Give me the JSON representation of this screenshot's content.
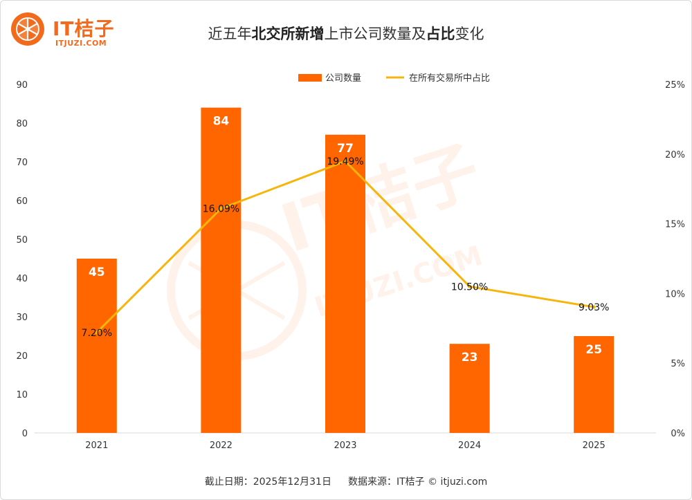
{
  "logo": {
    "brand": "IT桔子",
    "domain": "ITJUZI.COM"
  },
  "title": {
    "part1": "近五年",
    "part2": "北交所新增",
    "part3": "上市公司数量及",
    "part4": "占比",
    "part5": "变化"
  },
  "footer": {
    "date": "截止日期：2025年12月31日",
    "source": "数据来源：IT桔子 © itjuzi.com"
  },
  "watermark": {
    "brand": "IT桔子",
    "domain": "ITJUZI.COM"
  },
  "colors": {
    "bar": "#ff6600",
    "line": "#f5b50a",
    "accent": "#f26a1b",
    "grid": "#d9d9d9",
    "axis_text": "#333333"
  },
  "chart_data": {
    "type": "bar",
    "categories": [
      "2021",
      "2022",
      "2023",
      "2024",
      "2025"
    ],
    "series": [
      {
        "name": "公司数量",
        "type": "bar",
        "axis": "left",
        "values": [
          45,
          84,
          77,
          23,
          25
        ],
        "labels": [
          "45",
          "84",
          "77",
          "23",
          "25"
        ]
      },
      {
        "name": "在所有交易所中占比",
        "type": "line",
        "axis": "right",
        "values": [
          7.2,
          16.09,
          19.49,
          10.5,
          9.03
        ],
        "labels": [
          "7.20%",
          "16.09%",
          "19.49%",
          "10.50%",
          "9.03%"
        ]
      }
    ],
    "y_left": {
      "ticks": [
        "0",
        "10",
        "20",
        "30",
        "40",
        "50",
        "60",
        "70",
        "80",
        "90"
      ],
      "range": [
        0,
        90
      ]
    },
    "y_right": {
      "ticks": [
        "0%",
        "5%",
        "10%",
        "15%",
        "20%",
        "25%"
      ],
      "range": [
        0,
        25
      ]
    },
    "legend_position": "top-center",
    "grid": false
  }
}
